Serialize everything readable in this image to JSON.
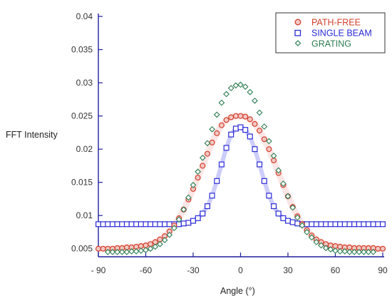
{
  "chart_data": {
    "type": "scatter",
    "title": "",
    "xlabel": "Angle (°)",
    "ylabel": "FFT Intensity",
    "xlim": [
      -90,
      90
    ],
    "ylim": [
      0.004,
      0.04
    ],
    "x_ticks": [
      -90,
      -60,
      -30,
      0,
      30,
      60,
      90
    ],
    "x_tick_labels": [
      "- 90",
      "-60",
      "-30",
      "0",
      "30",
      "60",
      "90"
    ],
    "y_ticks": [
      0.005,
      0.01,
      0.015,
      0.02,
      0.025,
      0.03,
      0.035,
      0.04
    ],
    "y_tick_labels": [
      "0.005",
      "0.01",
      "0.015",
      "0.02",
      "0.025",
      "0.03",
      "0.035",
      "0.04"
    ],
    "grid": false,
    "legend_position": "top-right",
    "series": [
      {
        "name": "PATH-FREE",
        "marker": "circle",
        "color": "#d2402e",
        "fill": "#f2c9c4",
        "x": [
          -90,
          -87,
          -84,
          -81,
          -78,
          -75,
          -72,
          -69,
          -66,
          -63,
          -60,
          -57,
          -54,
          -51,
          -48,
          -45,
          -42,
          -39,
          -36,
          -33,
          -30,
          -27,
          -24,
          -21,
          -18,
          -15,
          -12,
          -9,
          -6,
          -3,
          0,
          3,
          6,
          9,
          12,
          15,
          18,
          21,
          24,
          27,
          30,
          33,
          36,
          39,
          42,
          45,
          48,
          51,
          54,
          57,
          60,
          63,
          66,
          69,
          72,
          75,
          78,
          81,
          84,
          87,
          90
        ],
        "y": [
          0.005,
          0.005,
          0.005,
          0.005,
          0.0051,
          0.0051,
          0.0052,
          0.0052,
          0.0053,
          0.0054,
          0.0055,
          0.0057,
          0.006,
          0.0064,
          0.0069,
          0.0076,
          0.0085,
          0.0096,
          0.0109,
          0.0124,
          0.014,
          0.0157,
          0.0175,
          0.0193,
          0.021,
          0.0224,
          0.0236,
          0.0244,
          0.0248,
          0.025,
          0.025,
          0.0249,
          0.0245,
          0.0238,
          0.0228,
          0.0215,
          0.02,
          0.0183,
          0.0164,
          0.0146,
          0.0129,
          0.0113,
          0.0099,
          0.0087,
          0.0078,
          0.007,
          0.0064,
          0.006,
          0.0057,
          0.0055,
          0.0054,
          0.0053,
          0.0052,
          0.0052,
          0.0051,
          0.0051,
          0.0051,
          0.0051,
          0.0051,
          0.005,
          0.005
        ]
      },
      {
        "name": "SINGLE BEAM",
        "marker": "square",
        "color": "#2a2ad6",
        "fill": "#ffffff",
        "x": [
          -90,
          -87,
          -84,
          -81,
          -78,
          -75,
          -72,
          -69,
          -66,
          -63,
          -60,
          -57,
          -54,
          -51,
          -48,
          -45,
          -42,
          -39,
          -36,
          -33,
          -30,
          -27,
          -24,
          -21,
          -18,
          -15,
          -12,
          -9,
          -6,
          -3,
          0,
          3,
          6,
          9,
          12,
          15,
          18,
          21,
          24,
          27,
          30,
          33,
          36,
          39,
          42,
          45,
          48,
          51,
          54,
          57,
          60,
          63,
          66,
          69,
          72,
          75,
          78,
          81,
          84,
          87,
          90
        ],
        "y": [
          0.0087,
          0.0087,
          0.0087,
          0.0087,
          0.0087,
          0.0087,
          0.0087,
          0.0087,
          0.0087,
          0.0087,
          0.0087,
          0.0087,
          0.0087,
          0.0087,
          0.0087,
          0.0087,
          0.0087,
          0.0087,
          0.0088,
          0.0089,
          0.0092,
          0.0096,
          0.0103,
          0.0114,
          0.013,
          0.0152,
          0.0177,
          0.0202,
          0.0222,
          0.0231,
          0.0233,
          0.0229,
          0.0219,
          0.02,
          0.0177,
          0.0152,
          0.013,
          0.0114,
          0.0103,
          0.0096,
          0.0092,
          0.009,
          0.0088,
          0.0087,
          0.0087,
          0.0087,
          0.0087,
          0.0087,
          0.0087,
          0.0087,
          0.0087,
          0.0087,
          0.0087,
          0.0087,
          0.0087,
          0.0087,
          0.0087,
          0.0087,
          0.0087,
          0.0087,
          0.0087
        ]
      },
      {
        "name": "GRATING",
        "marker": "diamond",
        "color": "#2e7d52",
        "fill": "#ffffff",
        "x": [
          -84,
          -81,
          -78,
          -75,
          -72,
          -69,
          -66,
          -63,
          -60,
          -57,
          -54,
          -51,
          -48,
          -45,
          -42,
          -39,
          -36,
          -33,
          -30,
          -27,
          -24,
          -21,
          -18,
          -15,
          -12,
          -9,
          -6,
          -3,
          0,
          3,
          6,
          9,
          12,
          15,
          18,
          21,
          24,
          27,
          30,
          33,
          36,
          39,
          42,
          45,
          48,
          51,
          54,
          57,
          60,
          63,
          66,
          69,
          72,
          75,
          78,
          81,
          84
        ],
        "y": [
          0.0045,
          0.0045,
          0.0045,
          0.0045,
          0.0045,
          0.0046,
          0.0046,
          0.0047,
          0.0048,
          0.005,
          0.0053,
          0.0057,
          0.0063,
          0.0071,
          0.0081,
          0.0094,
          0.0109,
          0.0127,
          0.0146,
          0.0166,
          0.0187,
          0.0209,
          0.023,
          0.0252,
          0.027,
          0.0283,
          0.0292,
          0.0296,
          0.0297,
          0.0294,
          0.0286,
          0.0273,
          0.0255,
          0.0234,
          0.0212,
          0.019,
          0.0168,
          0.0148,
          0.0129,
          0.0112,
          0.0097,
          0.0085,
          0.0075,
          0.0067,
          0.006,
          0.0055,
          0.0051,
          0.0049,
          0.0047,
          0.0046,
          0.0046,
          0.0045,
          0.0045,
          0.0045,
          0.0045,
          0.0045,
          0.0045
        ]
      }
    ]
  },
  "colors": {
    "axis": "#1f1f9e",
    "path_free": "#d2402e",
    "path_free_band": "#f4b8b8",
    "single_beam": "#2a2ad6",
    "single_beam_band": "#6f6ff2",
    "grating": "#2e7d52"
  }
}
